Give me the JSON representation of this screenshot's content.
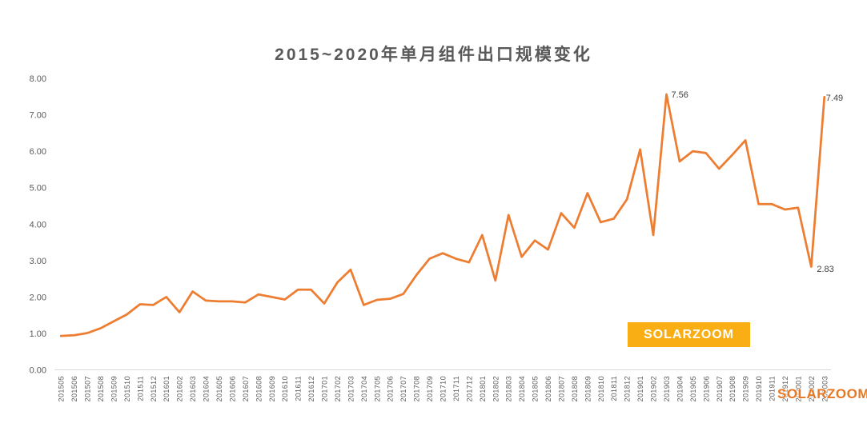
{
  "chart_data": {
    "type": "line",
    "title": "2015~2020年单月组件出口规模变化",
    "xlabel": "",
    "ylabel": "",
    "ylim": [
      0,
      8
    ],
    "ytick_labels": [
      "0.00",
      "1.00",
      "2.00",
      "3.00",
      "4.00",
      "5.00",
      "6.00",
      "7.00",
      "8.00"
    ],
    "grid": false,
    "legend_position": "none",
    "categories": [
      "201505",
      "201506",
      "201507",
      "201508",
      "201509",
      "201510",
      "201511",
      "201512",
      "201601",
      "201602",
      "201603",
      "201604",
      "201605",
      "201606",
      "201607",
      "201608",
      "201609",
      "201610",
      "201611",
      "201612",
      "201701",
      "201702",
      "201703",
      "201704",
      "201705",
      "201706",
      "201707",
      "201708",
      "201709",
      "201710",
      "201711",
      "201712",
      "201801",
      "201802",
      "201803",
      "201804",
      "201805",
      "201806",
      "201807",
      "201808",
      "201809",
      "201810",
      "201811",
      "201812",
      "201901",
      "201902",
      "201903",
      "201904",
      "201905",
      "201906",
      "201907",
      "201908",
      "201909",
      "201910",
      "201911",
      "201912",
      "202001",
      "202002",
      "202003"
    ],
    "series": [
      {
        "name": "单月组件出口规模",
        "color": "#ED7D31",
        "values": [
          0.93,
          0.95,
          1.01,
          1.14,
          1.33,
          1.52,
          1.8,
          1.78,
          2.0,
          1.58,
          2.15,
          1.9,
          1.88,
          1.88,
          1.85,
          2.07,
          2.0,
          1.93,
          2.2,
          2.2,
          1.82,
          2.4,
          2.75,
          1.78,
          1.92,
          1.95,
          2.08,
          2.6,
          3.05,
          3.2,
          3.05,
          2.95,
          3.7,
          2.45,
          4.25,
          3.1,
          3.55,
          3.3,
          4.3,
          3.9,
          4.85,
          4.05,
          4.15,
          4.68,
          6.05,
          3.7,
          7.56,
          5.72,
          6.0,
          5.95,
          5.52,
          5.9,
          6.3,
          4.55,
          4.55,
          4.4,
          4.45,
          2.83,
          7.49
        ]
      }
    ],
    "point_labels": [
      {
        "index": 46,
        "text": "7.56"
      },
      {
        "index": 57,
        "text": "2.83"
      },
      {
        "index": 58,
        "text": "7.49"
      }
    ]
  },
  "branding": {
    "badge_label": "SOLARZOOM",
    "badge_color": "#F9AE13",
    "watermark_label": "SOLARZOOM",
    "watermark_color": "#E87722"
  },
  "colors": {
    "title": "#595959",
    "axis_line": "#D9D9D9",
    "tick_label": "#595959",
    "data_label": "#404040",
    "background": "#FFFFFF"
  }
}
